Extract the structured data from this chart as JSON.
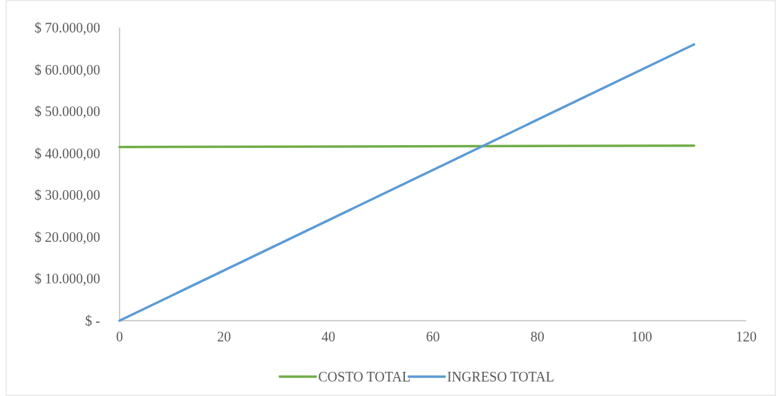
{
  "chart_data": {
    "type": "line",
    "x": [
      0,
      110
    ],
    "series": [
      {
        "name": "COSTO TOTAL",
        "color": "#70ad47",
        "values": [
          41500,
          41800
        ]
      },
      {
        "name": "INGRESO TOTAL",
        "color": "#5b9bd5",
        "values": [
          0,
          66000
        ]
      }
    ],
    "xlim": [
      0,
      120
    ],
    "xticks": [
      0,
      20,
      40,
      60,
      80,
      100,
      120
    ],
    "ylim": [
      0,
      70000
    ],
    "yticks": [
      {
        "value": 0,
        "label": "$ -"
      },
      {
        "value": 10000,
        "label": "$ 10.000,00"
      },
      {
        "value": 20000,
        "label": "$ 20.000,00"
      },
      {
        "value": 30000,
        "label": "$ 30.000,00"
      },
      {
        "value": 40000,
        "label": "$ 40.000,00"
      },
      {
        "value": 50000,
        "label": "$ 50.000,00"
      },
      {
        "value": 60000,
        "label": "$ 60.000,00"
      },
      {
        "value": 70000,
        "label": "$ 70.000,00"
      }
    ],
    "grid": false,
    "legend": "bottom",
    "marker": "none",
    "line_style": "solid"
  }
}
